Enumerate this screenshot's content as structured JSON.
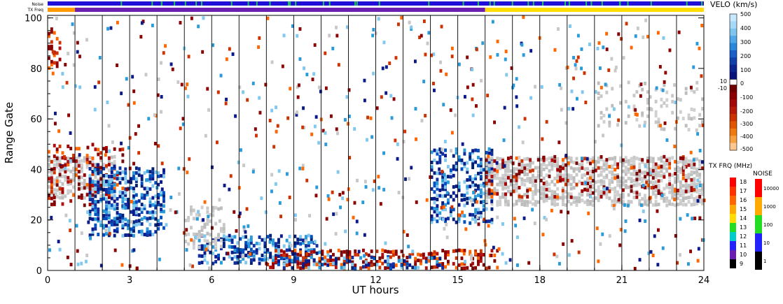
{
  "chart_data": {
    "type": "heatmap",
    "title": "",
    "xlabel": "UT hours",
    "ylabel": "Range Gate",
    "xlim": [
      0,
      24
    ],
    "ylim": [
      0,
      101
    ],
    "x_ticks": [
      "0",
      "3",
      "6",
      "9",
      "12",
      "15",
      "18",
      "21",
      "24"
    ],
    "x_tick_values": [
      0,
      3,
      6,
      9,
      12,
      15,
      18,
      21,
      24
    ],
    "y_ticks": [
      "0",
      "20",
      "40",
      "60",
      "80",
      "100"
    ],
    "y_tick_values": [
      0,
      20,
      40,
      60,
      80,
      100
    ],
    "hour_lines": [
      1,
      2,
      3,
      4,
      5,
      6,
      7,
      8,
      9,
      10,
      11,
      12,
      13,
      14,
      15,
      16,
      17,
      18,
      19,
      20,
      21,
      22,
      23
    ],
    "top_strips": {
      "noise_label": "Noise",
      "txfreq_label": "TX Freq",
      "noise_color": "#1f0fd8",
      "noise_accent": "#22c25a",
      "txfreq_segments": [
        {
          "start": 0,
          "end": 1,
          "color": "#ff9900"
        },
        {
          "start": 1,
          "end": 16,
          "color": "#6a1fb0"
        },
        {
          "start": 16,
          "end": 24,
          "color": "#ffdd00"
        }
      ]
    },
    "ground_scatter_color": "#c8c8c8",
    "regions": [
      {
        "name": "ground scatter early",
        "x0": 0.0,
        "x1": 2.5,
        "y0": 28,
        "y1": 45,
        "type": "gray",
        "density": 0.55
      },
      {
        "name": "negative patches early",
        "x0": 0.0,
        "x1": 2.8,
        "y0": 25,
        "y1": 50,
        "type": "neg",
        "density": 0.25
      },
      {
        "name": "high gate negative",
        "x0": 0.0,
        "x1": 0.5,
        "y0": 80,
        "y1": 95,
        "type": "neg",
        "density": 0.35
      },
      {
        "name": "positive sweep",
        "x0": 1.5,
        "x1": 4.3,
        "y0": 13,
        "y1": 40,
        "type": "pos",
        "density": 0.55
      },
      {
        "name": "near range positive",
        "x0": 5.5,
        "x1": 10.0,
        "y0": 2,
        "y1": 14,
        "type": "pos",
        "density": 0.5
      },
      {
        "name": "near range gray",
        "x0": 5.0,
        "x1": 6.5,
        "y0": 8,
        "y1": 25,
        "type": "gray",
        "density": 0.3
      },
      {
        "name": "low gate mixed",
        "x0": 8.0,
        "x1": 16.5,
        "y0": 0,
        "y1": 8,
        "type": "neg",
        "density": 0.4
      },
      {
        "name": "low gate positive",
        "x0": 8.0,
        "x1": 14.5,
        "y0": 0,
        "y1": 5,
        "type": "pos",
        "density": 0.3
      },
      {
        "name": "evening sweep positive",
        "x0": 14.0,
        "x1": 16.3,
        "y0": 18,
        "y1": 48,
        "type": "pos",
        "density": 0.4
      },
      {
        "name": "evening gray band",
        "x0": 16.0,
        "x1": 24.0,
        "y0": 25,
        "y1": 45,
        "type": "gray",
        "density": 0.6
      },
      {
        "name": "evening negative",
        "x0": 16.0,
        "x1": 24.0,
        "y0": 28,
        "y1": 45,
        "type": "neg",
        "density": 0.15
      },
      {
        "name": "evening upper gray",
        "x0": 20.0,
        "x1": 24.0,
        "y0": 55,
        "y1": 75,
        "type": "gray",
        "density": 0.15
      }
    ],
    "velocity_scale": {
      "label": "VELO (km/s)",
      "ticks": [
        "500",
        "400",
        "300",
        "200",
        "100",
        "10",
        "0",
        "-10",
        "-100",
        "-200",
        "-300",
        "-400",
        "-500"
      ]
    },
    "txfreq_scale": {
      "label": "TX FRQ (MHz)",
      "ticks": [
        "18",
        "17",
        "16",
        "15",
        "14",
        "13",
        "12",
        "11",
        "10",
        "9"
      ],
      "colors": [
        "#ff0000",
        "#ff3300",
        "#ff6600",
        "#ffaa00",
        "#ffdd00",
        "#22dd22",
        "#00cccc",
        "#2222ff",
        "#6a1fb0",
        "#000000"
      ]
    },
    "noise_scale": {
      "label": "NOISE",
      "ticks": [
        "10000",
        "1000",
        "100",
        "10",
        "1"
      ],
      "colors": [
        "#ff0000",
        "#ffaa00",
        "#22dd22",
        "#2222ff",
        "#000000"
      ]
    }
  }
}
